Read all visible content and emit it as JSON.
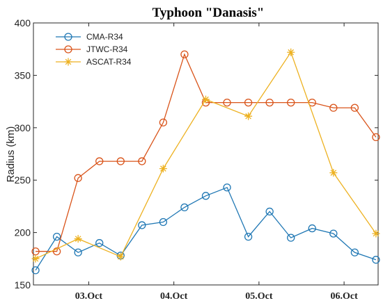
{
  "chart_data": {
    "type": "line",
    "title": "Typhoon \"Danasis\"",
    "xlabel": "",
    "ylabel": "Radius (km)",
    "x_ticks": [
      {
        "label": "03.Oct",
        "x": 2
      },
      {
        "label": "04.Oct",
        "x": 6
      },
      {
        "label": "05.Oct",
        "x": 10
      },
      {
        "label": "06.Oct",
        "x": 14
      }
    ],
    "xlim": [
      -0.6,
      15.6
    ],
    "ylim": [
      150,
      400
    ],
    "y_ticks": [
      150,
      200,
      250,
      300,
      350,
      400
    ],
    "legend_position": "top-left",
    "grid": false,
    "series": [
      {
        "name": "CMA-R34",
        "color": "#1f77b4",
        "marker": "circle",
        "points": [
          [
            -0.5,
            164
          ],
          [
            0.5,
            196
          ],
          [
            1.5,
            181
          ],
          [
            2.5,
            190
          ],
          [
            3.5,
            178
          ],
          [
            4.5,
            207
          ],
          [
            5.5,
            210
          ],
          [
            6.5,
            224
          ],
          [
            7.5,
            235
          ],
          [
            8.5,
            243
          ],
          [
            9.5,
            196
          ],
          [
            10.5,
            220
          ],
          [
            11.5,
            195
          ],
          [
            12.5,
            204
          ],
          [
            13.5,
            199
          ],
          [
            14.5,
            181
          ],
          [
            15.5,
            174
          ]
        ]
      },
      {
        "name": "JTWC-R34",
        "color": "#d95319",
        "marker": "circle",
        "points": [
          [
            -0.5,
            182
          ],
          [
            0.5,
            182
          ],
          [
            1.5,
            252
          ],
          [
            2.5,
            268
          ],
          [
            3.5,
            268
          ],
          [
            4.5,
            268
          ],
          [
            5.5,
            305
          ],
          [
            6.5,
            370
          ],
          [
            7.5,
            324
          ],
          [
            8.5,
            324
          ],
          [
            9.5,
            324
          ],
          [
            10.5,
            324
          ],
          [
            11.5,
            324
          ],
          [
            12.5,
            324
          ],
          [
            13.5,
            319
          ],
          [
            14.5,
            319
          ],
          [
            15.5,
            291
          ]
        ]
      },
      {
        "name": "ASCAT-R34",
        "color": "#edb120",
        "marker": "asterisk",
        "points": [
          [
            -0.5,
            175
          ],
          [
            1.5,
            194
          ],
          [
            3.5,
            177
          ],
          [
            5.5,
            261
          ],
          [
            7.5,
            327
          ],
          [
            9.5,
            311
          ],
          [
            11.5,
            372
          ],
          [
            13.5,
            257
          ],
          [
            15.5,
            199
          ]
        ]
      }
    ]
  }
}
